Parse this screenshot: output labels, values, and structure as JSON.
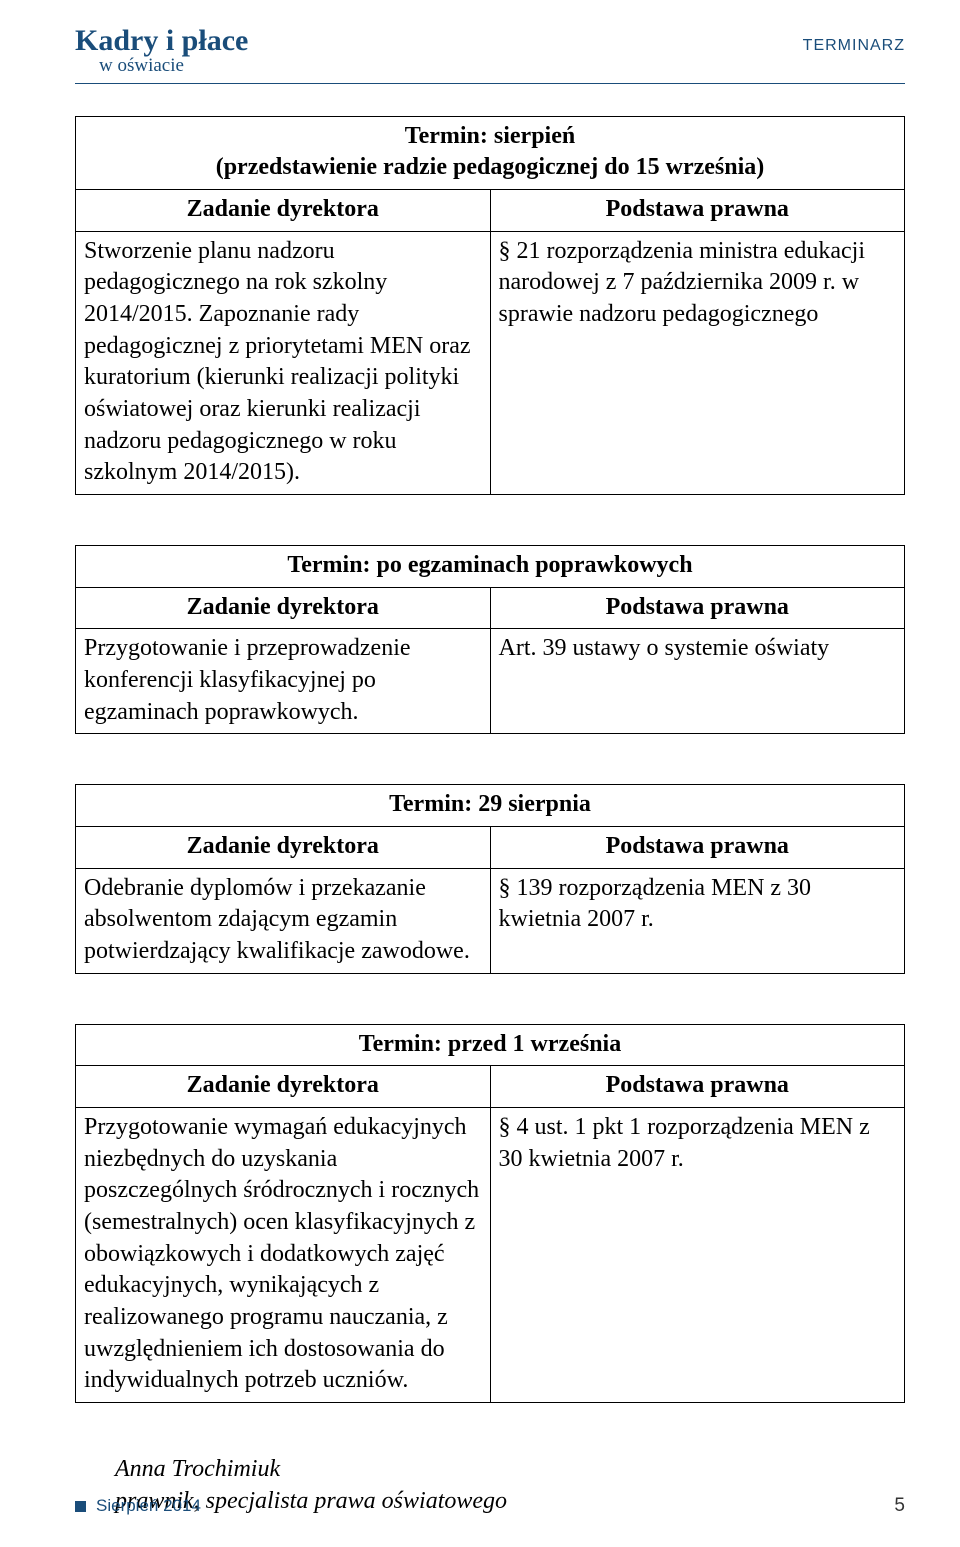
{
  "brand": {
    "title": "Kadry i płace",
    "subtitle": "w oświacie"
  },
  "sectionLabel": "TERMINARZ",
  "tables": [
    {
      "termin": "Termin: sierpień\n(przedstawienie radzie pedagogicznej do 15 września)",
      "headerLeft": "Zadanie dyrektora",
      "headerRight": "Podstawa prawna",
      "bodyLeft": "Stworzenie planu nadzoru pedagogicznego na rok szkolny 2014/2015. Zapoznanie rady pedagogicznej z priorytetami MEN oraz kuratorium (kierunki realizacji polityki oświatowej oraz kierunki realizacji nadzoru pedagogicznego w roku szkolnym 2014/2015).",
      "bodyRight": "§ 21 rozporządzenia ministra edukacji narodowej z 7 października 2009 r. w sprawie nadzoru pedagogicznego"
    },
    {
      "termin": "Termin: po egzaminach poprawkowych",
      "headerLeft": "Zadanie dyrektora",
      "headerRight": "Podstawa prawna",
      "bodyLeft": "Przygotowanie i przeprowadzenie konferencji klasyfikacyjnej po egzaminach poprawkowych.",
      "bodyRight": "Art. 39 ustawy o systemie oświaty"
    },
    {
      "termin": "Termin: 29 sierpnia",
      "headerLeft": "Zadanie dyrektora",
      "headerRight": "Podstawa prawna",
      "bodyLeft": "Odebranie dyplomów i przekazanie absolwentom zdającym egzamin potwierdzający kwalifikacje zawodowe.",
      "bodyRight": "§ 139 rozporządzenia MEN z 30 kwietnia 2007 r."
    },
    {
      "termin": "Termin: przed 1 września",
      "headerLeft": "Zadanie dyrektora",
      "headerRight": "Podstawa prawna",
      "bodyLeft": "Przygotowanie wymagań edukacyjnych niezbędnych do uzyskania poszczególnych śródrocznych i rocznych (semestralnych) ocen klasyfikacyjnych z obowiązkowych i dodatkowych zajęć edukacyjnych, wynikających z realizowanego programu nauczania, z uwzględnieniem ich dostosowania do indywidualnych potrzeb uczniów.",
      "bodyRight": "§ 4 ust. 1 pkt 1 rozporządzenia MEN z 30 kwietnia 2007 r."
    }
  ],
  "author": {
    "name": "Anna Trochimiuk",
    "role": "prawnik, specjalista prawa oświatowego"
  },
  "footer": {
    "issue": "Sierpień 2014",
    "page": "5"
  },
  "colors": {
    "brand": "#1a4d7a",
    "border": "#000000",
    "background": "#ffffff"
  },
  "typography": {
    "body_family": "Times New Roman",
    "body_size_pt": 18,
    "brand_title_size_pt": 23,
    "brand_sub_size_pt": 14,
    "section_label_size_pt": 12
  }
}
